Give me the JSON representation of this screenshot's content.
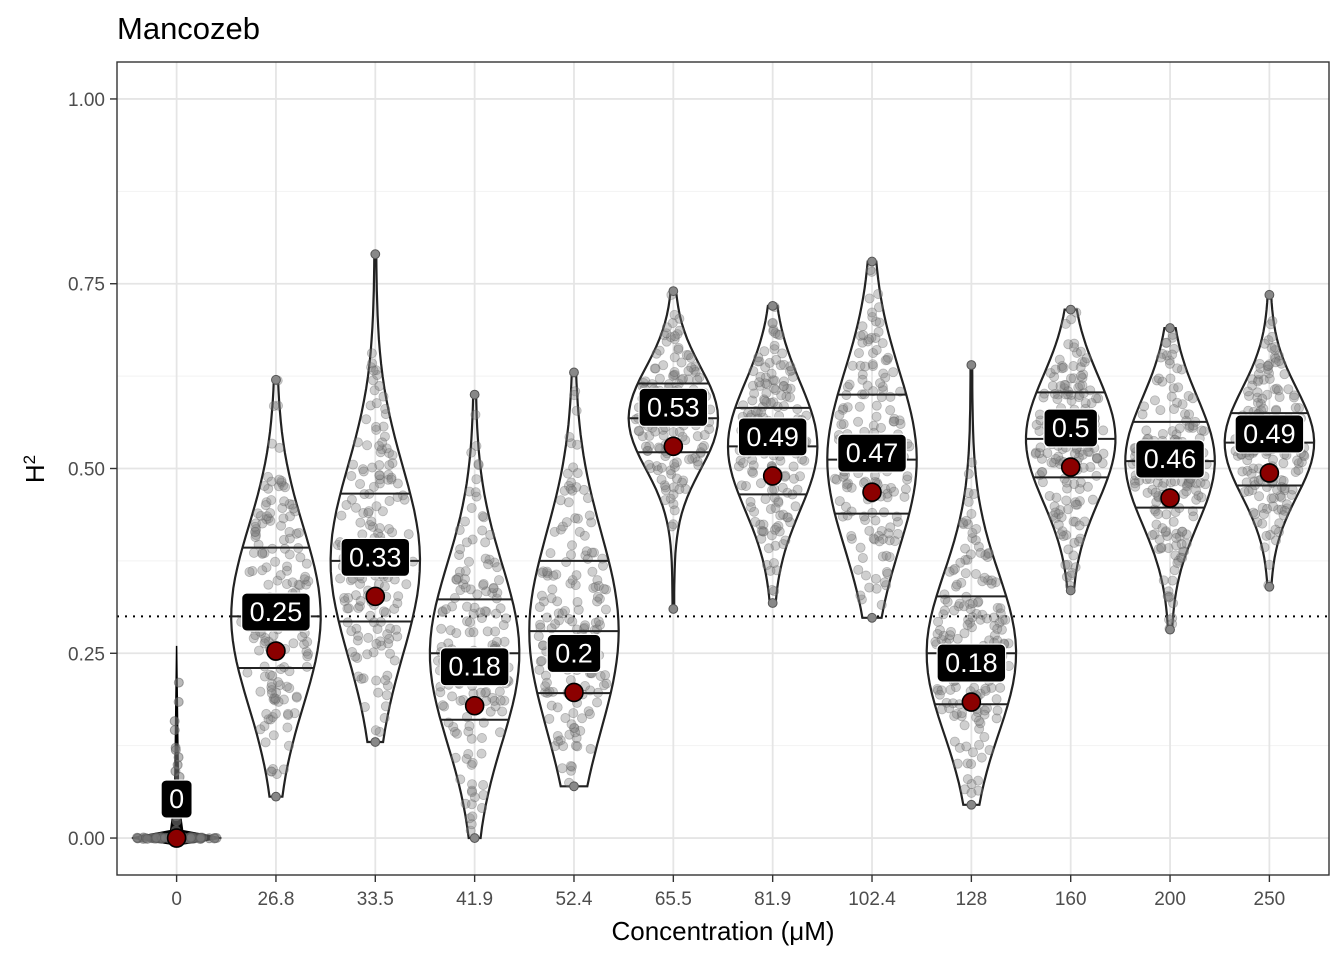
{
  "chart_data": {
    "type": "violin",
    "title": "Mancozeb",
    "xlabel": "Concentration (μM)",
    "ylabel": "H",
    "ylabel_superscript": "2",
    "categories": [
      "0",
      "26.8",
      "33.5",
      "41.9",
      "52.4",
      "65.5",
      "81.9",
      "102.4",
      "128",
      "160",
      "200",
      "250"
    ],
    "ylim": [
      -0.05,
      1.05
    ],
    "yticks": [
      "0.00",
      "0.25",
      "0.50",
      "0.75",
      "1.00"
    ],
    "reference_line": 0.3,
    "groups": [
      {
        "category": "0",
        "label": "0",
        "mean": 0.0,
        "median": 0.0,
        "q1": 0.0,
        "q3": 0.0,
        "min": 0.0,
        "max": 0.26
      },
      {
        "category": "26.8",
        "label": "0.25",
        "mean": 0.253,
        "median": 0.3,
        "q1": 0.23,
        "q3": 0.393,
        "min": 0.056,
        "max": 0.62
      },
      {
        "category": "33.5",
        "label": "0.33",
        "mean": 0.327,
        "median": 0.375,
        "q1": 0.293,
        "q3": 0.466,
        "min": 0.13,
        "max": 0.79
      },
      {
        "category": "41.9",
        "label": "0.18",
        "mean": 0.179,
        "median": 0.25,
        "q1": 0.16,
        "q3": 0.323,
        "min": 0.0,
        "max": 0.6
      },
      {
        "category": "52.4",
        "label": "0.2",
        "mean": 0.197,
        "median": 0.28,
        "q1": 0.196,
        "q3": 0.375,
        "min": 0.07,
        "max": 0.63
      },
      {
        "category": "65.5",
        "label": "0.53",
        "mean": 0.53,
        "median": 0.568,
        "q1": 0.522,
        "q3": 0.615,
        "min": 0.31,
        "max": 0.74
      },
      {
        "category": "81.9",
        "label": "0.49",
        "mean": 0.49,
        "median": 0.53,
        "q1": 0.465,
        "q3": 0.582,
        "min": 0.318,
        "max": 0.72
      },
      {
        "category": "102.4",
        "label": "0.47",
        "mean": 0.468,
        "median": 0.512,
        "q1": 0.439,
        "q3": 0.6,
        "min": 0.298,
        "max": 0.78
      },
      {
        "category": "128",
        "label": "0.18",
        "mean": 0.184,
        "median": 0.25,
        "q1": 0.181,
        "q3": 0.327,
        "min": 0.045,
        "max": 0.64
      },
      {
        "category": "160",
        "label": "0.5",
        "mean": 0.502,
        "median": 0.54,
        "q1": 0.488,
        "q3": 0.603,
        "min": 0.335,
        "max": 0.715
      },
      {
        "category": "200",
        "label": "0.46",
        "mean": 0.46,
        "median": 0.51,
        "q1": 0.447,
        "q3": 0.563,
        "min": 0.282,
        "max": 0.69
      },
      {
        "category": "250",
        "label": "0.49",
        "mean": 0.494,
        "median": 0.535,
        "q1": 0.477,
        "q3": 0.575,
        "min": 0.34,
        "max": 0.735
      }
    ],
    "colors": {
      "mean_point": "#8b0000",
      "jitter_points": "#808080",
      "violin_outline": "#222222",
      "label_box": "#000000",
      "label_text": "#ffffff",
      "panel_border": "#333333",
      "grid_major": "#e5e5e5",
      "grid_minor": "#f2f2f2"
    },
    "grid": true,
    "legend": "none"
  }
}
